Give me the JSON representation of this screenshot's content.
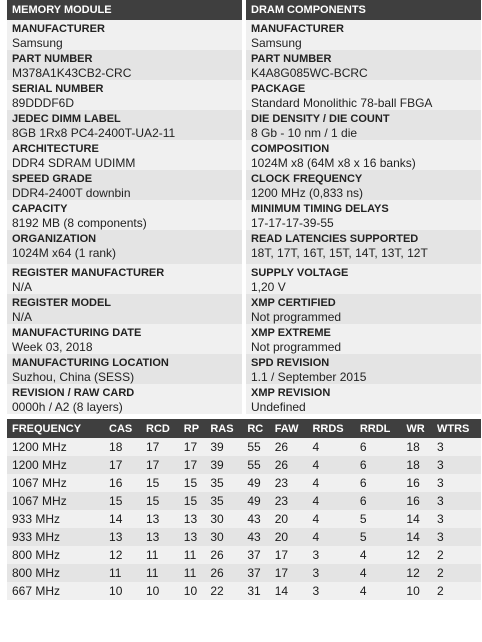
{
  "module": {
    "heading": "MEMORY MODULE",
    "fields": [
      {
        "label": "MANUFACTURER",
        "value": "Samsung"
      },
      {
        "label": "PART NUMBER",
        "value": "M378A1K43CB2-CRC"
      },
      {
        "label": "SERIAL NUMBER",
        "value": "89DDDF6D"
      },
      {
        "label": "JEDEC DIMM LABEL",
        "value": "8GB 1Rx8 PC4-2400T-UA2-11"
      },
      {
        "label": "ARCHITECTURE",
        "value": "DDR4 SDRAM UDIMM"
      },
      {
        "label": "SPEED GRADE",
        "value": "DDR4-2400T downbin"
      },
      {
        "label": "CAPACITY",
        "value": "8192 MB (8 components)"
      },
      {
        "label": "ORGANIZATION",
        "value": "1024M x64 (1 rank)"
      },
      {
        "label": "REGISTER MANUFACTURER",
        "value": "N/A"
      },
      {
        "label": "REGISTER MODEL",
        "value": "N/A"
      },
      {
        "label": "MANUFACTURING DATE",
        "value": "Week 03, 2018"
      },
      {
        "label": "MANUFACTURING LOCATION",
        "value": "Suzhou, China (SESS)"
      },
      {
        "label": "REVISION / RAW CARD",
        "value": "0000h / A2 (8 layers)"
      }
    ]
  },
  "dram": {
    "heading": "DRAM COMPONENTS",
    "fields": [
      {
        "label": "MANUFACTURER",
        "value": "Samsung"
      },
      {
        "label": "PART NUMBER",
        "value": "K4A8G085WC-BCRC"
      },
      {
        "label": "PACKAGE",
        "value": "Standard Monolithic 78-ball FBGA"
      },
      {
        "label": "DIE DENSITY / DIE COUNT",
        "value": "8 Gb - 10 nm / 1 die"
      },
      {
        "label": "COMPOSITION",
        "value": "1024M x8 (64M x8 x 16 banks)"
      },
      {
        "label": "CLOCK FREQUENCY",
        "value": "1200 MHz (0,833 ns)"
      },
      {
        "label": "MINIMUM TIMING DELAYS",
        "value": "17-17-17-39-55"
      },
      {
        "label": "READ LATENCIES SUPPORTED",
        "value": "18T, 17T, 16T, 15T, 14T, 13T, 12T"
      },
      {
        "label": "SUPPLY VOLTAGE",
        "value": "1,20 V"
      },
      {
        "label": "XMP CERTIFIED",
        "value": "Not programmed"
      },
      {
        "label": "XMP EXTREME",
        "value": "Not programmed"
      },
      {
        "label": "SPD REVISION",
        "value": "1.1 / September 2015"
      },
      {
        "label": "XMP REVISION",
        "value": "Undefined"
      }
    ]
  },
  "timings": {
    "headers": [
      "FREQUENCY",
      "CAS",
      "RCD",
      "RP",
      "RAS",
      "RC",
      "FAW",
      "RRDS",
      "RRDL",
      "WR",
      "WTRS"
    ],
    "rows": [
      [
        "1200 MHz",
        "18",
        "17",
        "17",
        "39",
        "55",
        "26",
        "4",
        "6",
        "18",
        "3"
      ],
      [
        "1200 MHz",
        "17",
        "17",
        "17",
        "39",
        "55",
        "26",
        "4",
        "6",
        "18",
        "3"
      ],
      [
        "1067 MHz",
        "16",
        "15",
        "15",
        "35",
        "49",
        "23",
        "4",
        "6",
        "16",
        "3"
      ],
      [
        "1067 MHz",
        "15",
        "15",
        "15",
        "35",
        "49",
        "23",
        "4",
        "6",
        "16",
        "3"
      ],
      [
        "933 MHz",
        "14",
        "13",
        "13",
        "30",
        "43",
        "20",
        "4",
        "5",
        "14",
        "3"
      ],
      [
        "933 MHz",
        "13",
        "13",
        "13",
        "30",
        "43",
        "20",
        "4",
        "5",
        "14",
        "3"
      ],
      [
        "800 MHz",
        "12",
        "11",
        "11",
        "26",
        "37",
        "17",
        "3",
        "4",
        "12",
        "2"
      ],
      [
        "800 MHz",
        "11",
        "11",
        "11",
        "26",
        "37",
        "17",
        "3",
        "4",
        "12",
        "2"
      ],
      [
        "667 MHz",
        "10",
        "10",
        "10",
        "22",
        "31",
        "14",
        "3",
        "4",
        "10",
        "2"
      ]
    ]
  }
}
